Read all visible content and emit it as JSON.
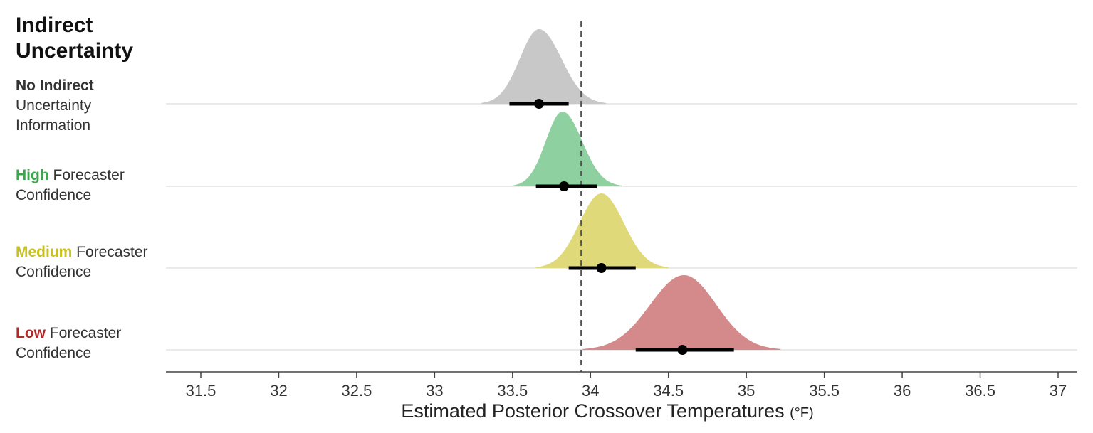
{
  "legend": {
    "title": "Indirect Uncertainty"
  },
  "conditions": [
    {
      "emphasis": "No Indirect",
      "line1_rest": "",
      "line2": "Uncertainty",
      "line3": "Information",
      "emphasis_color": "#333333",
      "fill": "#c8c8c8"
    },
    {
      "emphasis": "High",
      "line1_rest": " Forecaster",
      "line2": "Confidence",
      "line3": "",
      "emphasis_color": "#3aa84a",
      "fill": "#8fd0a0"
    },
    {
      "emphasis": "Medium",
      "line1_rest": " Forecaster",
      "line2": "Confidence",
      "line3": "",
      "emphasis_color": "#c9c21a",
      "fill": "#dfd97a"
    },
    {
      "emphasis": "Low",
      "line1_rest": " Forecaster",
      "line2": "Confidence",
      "line3": "",
      "emphasis_color": "#b02a2a",
      "fill": "#d48a8a"
    }
  ],
  "chart_data": {
    "type": "ridgeline",
    "xlabel": "Estimated Posterior Crossover Temperatures",
    "xlabel_unit": "(°F)",
    "xlim": [
      31.3,
      37.1
    ],
    "xticks": [
      "31.5",
      "32",
      "32.5",
      "33",
      "33.5",
      "34",
      "34.5",
      "35",
      "35.5",
      "36",
      "36.5",
      "37"
    ],
    "reference_line": 33.94,
    "series": [
      {
        "name": "No Indirect Uncertainty Information",
        "mean": 33.67,
        "interval": [
          33.48,
          33.86
        ],
        "density_range": [
          33.3,
          34.1
        ],
        "mode": 33.67
      },
      {
        "name": "High Forecaster Confidence",
        "mean": 33.83,
        "interval": [
          33.65,
          34.04
        ],
        "density_range": [
          33.5,
          34.2
        ],
        "mode": 33.82
      },
      {
        "name": "Medium Forecaster Confidence",
        "mean": 34.07,
        "interval": [
          33.86,
          34.29
        ],
        "density_range": [
          33.65,
          34.5
        ],
        "mode": 34.07
      },
      {
        "name": "Low Forecaster Confidence",
        "mean": 34.59,
        "interval": [
          34.29,
          34.92
        ],
        "density_range": [
          33.95,
          35.22
        ],
        "mode": 34.6
      }
    ]
  }
}
